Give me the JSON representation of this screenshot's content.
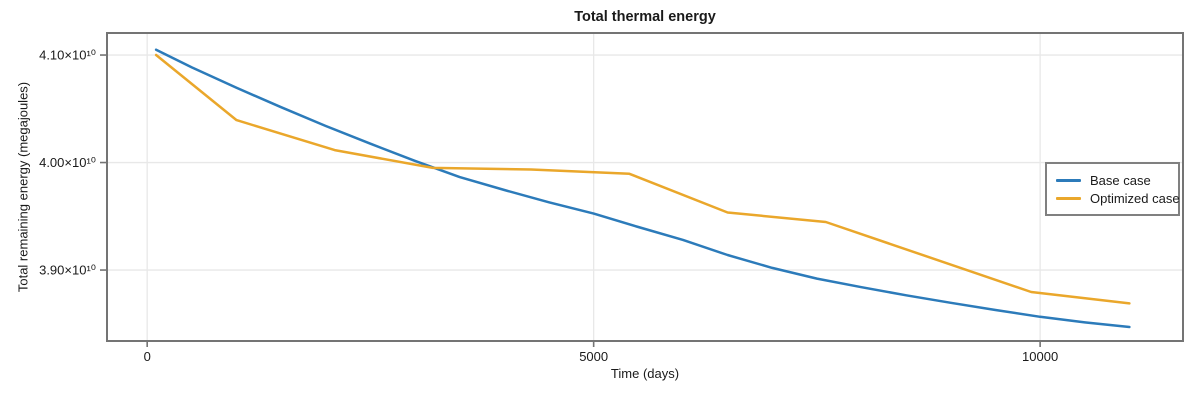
{
  "chart_data": {
    "type": "line",
    "title": "Total thermal energy",
    "xlabel": "Time (days)",
    "ylabel": "Total remaining energy (megajoules)",
    "xlim": [
      -450,
      11600
    ],
    "ylim": [
      38340000000,
      41205000000
    ],
    "grid": true,
    "legend_position": "right",
    "x_ticks": [
      {
        "value": 0,
        "label": "0"
      },
      {
        "value": 5000,
        "label": "5000"
      },
      {
        "value": 10000,
        "label": "10000"
      }
    ],
    "y_ticks": [
      {
        "value": 39000000000,
        "label": "3.90×10¹⁰"
      },
      {
        "value": 40000000000,
        "label": "4.00×10¹⁰"
      },
      {
        "value": 41000000000,
        "label": "4.10×10¹⁰"
      }
    ],
    "series": [
      {
        "name": "Base case",
        "color": "#2c7bba",
        "points": [
          [
            100,
            41050000000
          ],
          [
            500,
            40885000000
          ],
          [
            1000,
            40695000000
          ],
          [
            1500,
            40515000000
          ],
          [
            2000,
            40340000000
          ],
          [
            2500,
            40175000000
          ],
          [
            3000,
            40015000000
          ],
          [
            3500,
            39865000000
          ],
          [
            4000,
            39745000000
          ],
          [
            4500,
            39630000000
          ],
          [
            5000,
            39525000000
          ],
          [
            5500,
            39400000000
          ],
          [
            6000,
            39280000000
          ],
          [
            6500,
            39140000000
          ],
          [
            7000,
            39020000000
          ],
          [
            7500,
            38920000000
          ],
          [
            8000,
            38840000000
          ],
          [
            8500,
            38765000000
          ],
          [
            9000,
            38695000000
          ],
          [
            9500,
            38628000000
          ],
          [
            10000,
            38565000000
          ],
          [
            10500,
            38513000000
          ],
          [
            11000,
            38470000000
          ]
        ]
      },
      {
        "name": "Optimized case",
        "color": "#eaa72b",
        "points": [
          [
            100,
            41000000000
          ],
          [
            1000,
            40395000000
          ],
          [
            2100,
            40116000000
          ],
          [
            3200,
            39950000000
          ],
          [
            4300,
            39935000000
          ],
          [
            5400,
            39895000000
          ],
          [
            6500,
            39535000000
          ],
          [
            7600,
            39447000000
          ],
          [
            9900,
            38796000000
          ],
          [
            11000,
            38690000000
          ]
        ]
      }
    ],
    "style": {
      "spine_color": "#747474",
      "grid_color": "#e8e8e8",
      "tick_color": "#747474",
      "background": "#ffffff"
    }
  }
}
